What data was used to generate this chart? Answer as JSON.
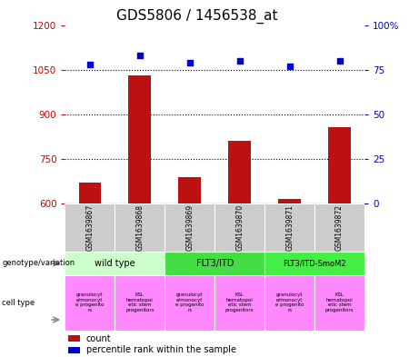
{
  "title": "GDS5806 / 1456538_at",
  "samples": [
    "GSM1639867",
    "GSM1639868",
    "GSM1639869",
    "GSM1639870",
    "GSM1639871",
    "GSM1639872"
  ],
  "counts": [
    670,
    1030,
    690,
    810,
    615,
    855
  ],
  "percentiles": [
    78,
    83,
    79,
    80,
    77,
    80
  ],
  "ylim_left": [
    600,
    1200
  ],
  "ylim_right": [
    0,
    100
  ],
  "yticks_left": [
    600,
    750,
    900,
    1050,
    1200
  ],
  "yticks_right": [
    0,
    25,
    50,
    75,
    100
  ],
  "bar_color": "#bb1111",
  "scatter_color": "#0000cc",
  "genotype_groups": [
    {
      "label": "wild type",
      "start": 0,
      "end": 2,
      "color": "#ccffcc"
    },
    {
      "label": "FLT3/ITD",
      "start": 2,
      "end": 4,
      "color": "#44dd44"
    },
    {
      "label": "FLT3/ITD-SmoM2",
      "start": 4,
      "end": 6,
      "color": "#44ee44"
    }
  ],
  "cell_label_odd": "granulocyt\ne/monocyt\ne progenito\nrs",
  "cell_label_even": "KSL\nhematopoi\netic stem\nprogenitors",
  "cell_color": "#ff88ff",
  "sample_bg_color": "#cccccc",
  "title_fontsize": 11,
  "axis_color_left": "#cc0000",
  "axis_color_right": "#0000cc",
  "fig_bg": "#ffffff"
}
